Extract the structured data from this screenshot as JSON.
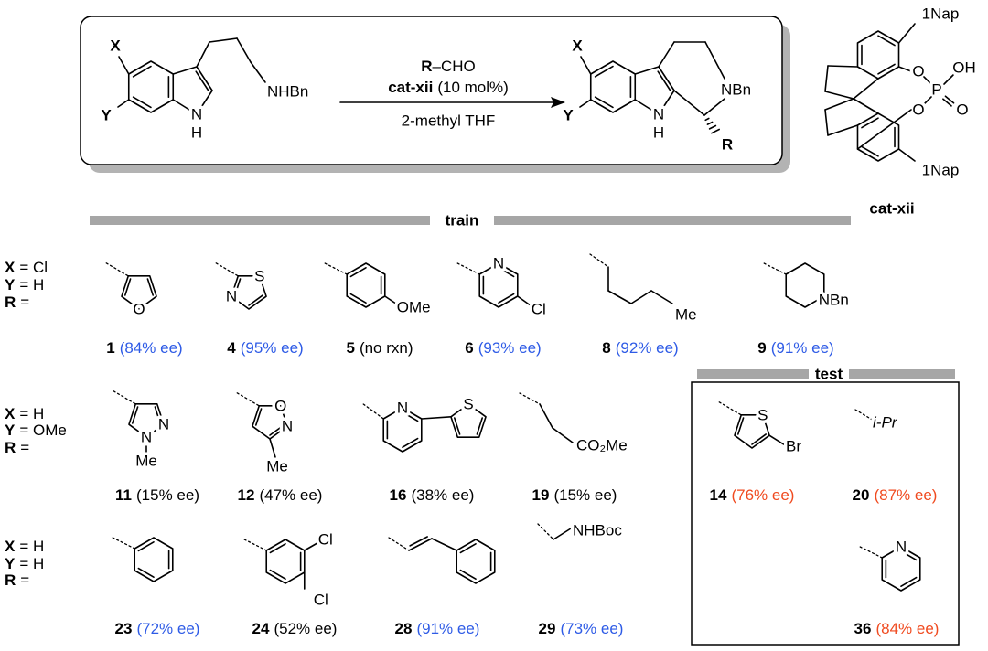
{
  "scheme": {
    "reactant": {
      "x": "X",
      "y": "Y",
      "amine": "NHBn",
      "n": "N",
      "h": "H"
    },
    "reagent_group": "R",
    "reagent_rest": "–CHO",
    "catalyst": "cat-xii",
    "loading": "(10 mol%)",
    "solvent": "2-methyl THF",
    "product": {
      "x": "X",
      "y": "Y",
      "amine": "NBn",
      "n": "N",
      "h": "H",
      "r": "R"
    }
  },
  "catalyst": {
    "nap_top": "1Nap",
    "o_top": "O",
    "p": "P",
    "oh": "OH",
    "o_double": "O",
    "o_bottom": "O",
    "nap_bottom": "1Nap",
    "name": "cat-xii"
  },
  "sections": {
    "train": "train",
    "test": "test"
  },
  "rows": [
    {
      "conditions": [
        {
          "key": "X",
          "value": "= Cl"
        },
        {
          "key": "Y",
          "value": "= H"
        },
        {
          "key": "R",
          "value": "="
        }
      ]
    },
    {
      "conditions": [
        {
          "key": "X",
          "value": "= H"
        },
        {
          "key": "Y",
          "value": "= OMe"
        },
        {
          "key": "R",
          "value": "="
        }
      ]
    },
    {
      "conditions": [
        {
          "key": "X",
          "value": "= H"
        },
        {
          "key": "Y",
          "value": "= H"
        },
        {
          "key": "R",
          "value": "="
        }
      ]
    }
  ],
  "compounds": [
    {
      "number": "1",
      "result": "(84% ee)",
      "color": "#2e5be6",
      "atoms": [
        "O"
      ]
    },
    {
      "number": "4",
      "result": "(95% ee)",
      "color": "#2e5be6",
      "atoms": [
        "S",
        "N"
      ]
    },
    {
      "number": "5",
      "result": "(no rxn)",
      "color": "#000000",
      "atoms": [
        "OMe"
      ]
    },
    {
      "number": "6",
      "result": "(93% ee)",
      "color": "#2e5be6",
      "atoms": [
        "N",
        "Cl"
      ]
    },
    {
      "number": "8",
      "result": "(92% ee)",
      "color": "#2e5be6",
      "atoms": [
        "Me"
      ]
    },
    {
      "number": "9",
      "result": "(91% ee)",
      "color": "#2e5be6",
      "atoms": [
        "NBn"
      ]
    },
    {
      "number": "11",
      "result": "(15% ee)",
      "color": "#000000",
      "atoms": [
        "N",
        "N",
        "Me"
      ]
    },
    {
      "number": "12",
      "result": "(47% ee)",
      "color": "#000000",
      "atoms": [
        "O",
        "N",
        "Me"
      ]
    },
    {
      "number": "16",
      "result": "(38% ee)",
      "color": "#000000",
      "atoms": [
        "N",
        "S"
      ]
    },
    {
      "number": "19",
      "result": "(15% ee)",
      "color": "#000000",
      "atoms": [
        "CO₂Me"
      ]
    },
    {
      "number": "23",
      "result": "(72% ee)",
      "color": "#2e5be6"
    },
    {
      "number": "24",
      "result": "(52% ee)",
      "color": "#000000",
      "atoms": [
        "Cl",
        "Cl"
      ]
    },
    {
      "number": "28",
      "result": "(91% ee)",
      "color": "#2e5be6"
    },
    {
      "number": "29",
      "result": "(73% ee)",
      "color": "#2e5be6",
      "atoms": [
        "NHBoc"
      ]
    },
    {
      "number": "14",
      "result": "(76% ee)",
      "color": "#f04a1f",
      "atoms": [
        "S",
        "Br"
      ]
    },
    {
      "number": "20",
      "result": "(87% ee)",
      "color": "#f04a1f",
      "atoms": [
        "i-Pr"
      ]
    },
    {
      "number": "36",
      "result": "(84% ee)",
      "color": "#f04a1f",
      "atoms": [
        "N"
      ]
    }
  ]
}
